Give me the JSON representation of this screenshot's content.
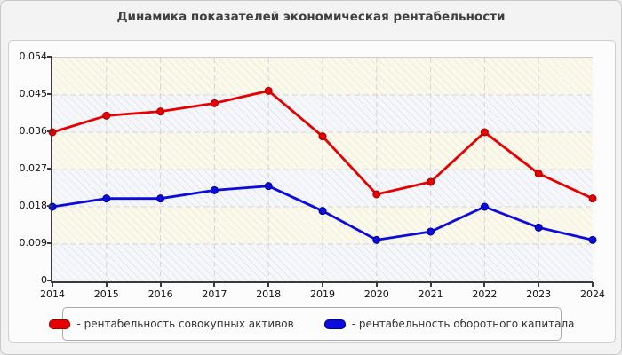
{
  "page": {
    "title": "Динамика показателей экономическая рентабельности"
  },
  "legend": {
    "prefix": "- ",
    "position": "bottom"
  },
  "colors": {
    "page_bg": "#f3f3f3",
    "card_bg": "#fcfcfc",
    "band_cream_base": "#fbf9ec",
    "band_cream_hatch": "#f1ecd7",
    "band_blue_base": "#f6f7fb",
    "band_blue_hatch": "#e4e7f2",
    "gridline": "#d4d4d4",
    "axis": "#3a3a3a",
    "series_red": "#e60000",
    "series_blue": "#0b0bdd"
  },
  "chart_data": {
    "type": "line",
    "title": "Динамика показателей экономическая рентабельности",
    "x": [
      "2014",
      "2015",
      "2016",
      "2017",
      "2018",
      "2019",
      "2020",
      "2021",
      "2022",
      "2023",
      "2024"
    ],
    "series": [
      {
        "name": "рентабельность совокупных активов",
        "color": "#e60000",
        "marker_edge": "#a00000",
        "values": [
          0.036,
          0.04,
          0.041,
          0.043,
          0.046,
          0.035,
          0.021,
          0.024,
          0.036,
          0.026,
          0.02
        ]
      },
      {
        "name": "рентабельность оборотного капитала",
        "color": "#0b0bdd",
        "marker_edge": "#000090",
        "values": [
          0.018,
          0.02,
          0.02,
          0.022,
          0.023,
          0.017,
          0.01,
          0.012,
          0.018,
          0.013,
          0.01
        ]
      }
    ],
    "xlabel": "",
    "ylabel": "",
    "ylim": [
      0,
      0.054
    ],
    "ytick_values": [
      0,
      0.009,
      0.018,
      0.027,
      0.036,
      0.045,
      0.054
    ],
    "ytick_labels": [
      "0",
      "0.009",
      "0.018",
      "0.027",
      "0.036",
      "0.045",
      "0.054"
    ],
    "grid": "dashed",
    "legend_position": "bottom"
  }
}
